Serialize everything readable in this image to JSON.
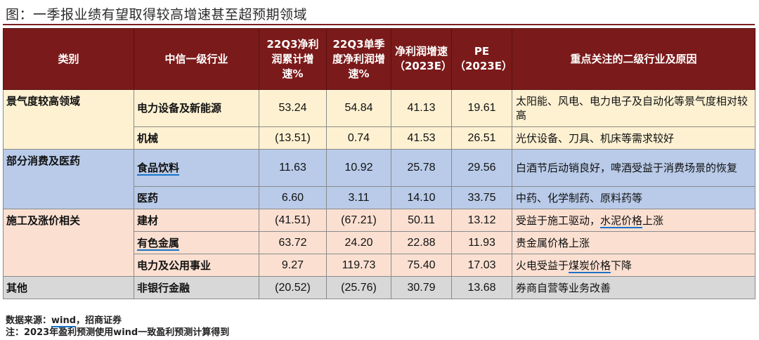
{
  "title": "图：一季报业绩有望取得较高增速甚至超预期领域",
  "table": {
    "headers": [
      "类别",
      "中信一级行业",
      "22Q3净利润累计增速%",
      "22Q3单季度净利润增速%",
      "净利润增速（2023E）",
      "PE（2023E）",
      "重点关注的二级行业及原因"
    ],
    "rows": [
      {
        "category": "景气度较高领域",
        "industry": "电力设备及新能源",
        "v1": "53.24",
        "v2": "54.84",
        "v3": "41.13",
        "pe": "19.61",
        "reason": "太阳能、风电、电力电子及自动化等景气度相对较高"
      },
      {
        "category": "",
        "industry": "机械",
        "v1": "(13.51)",
        "v2": "0.74",
        "v3": "41.53",
        "pe": "26.51",
        "reason": "光伏设备、刀具、机床等需求较好"
      },
      {
        "category": "部分消费及医药",
        "industry": "食品饮料",
        "v1": "11.63",
        "v2": "10.92",
        "v3": "25.78",
        "pe": "29.56",
        "reason": "白酒节后动销良好，啤酒受益于消费场景的恢复"
      },
      {
        "category": "",
        "industry": "医药",
        "v1": "6.60",
        "v2": "3.11",
        "v3": "14.10",
        "pe": "33.75",
        "reason": "中药、化学制药、原料药等"
      },
      {
        "category": "施工及涨价相关",
        "industry": "建材",
        "v1": "(41.51)",
        "v2": "(67.21)",
        "v3": "50.11",
        "pe": "13.12",
        "reason_pre": "受益于施工驱动，",
        "reason_ul": "水泥价格",
        "reason_post": "上涨"
      },
      {
        "category": "",
        "industry": "有色金属",
        "v1": "63.72",
        "v2": "24.20",
        "v3": "22.88",
        "pe": "11.93",
        "reason": "贵金属价格上涨"
      },
      {
        "category": "",
        "industry": "电力及公用事业",
        "v1": "9.27",
        "v2": "119.73",
        "v3": "75.40",
        "pe": "17.03",
        "reason_pre": "火电受益于",
        "reason_ul": "煤炭价格",
        "reason_post": "下降"
      },
      {
        "category": "其他",
        "industry": "非银行金融",
        "v1": "(20.52)",
        "v2": "(25.76)",
        "v3": "30.79",
        "pe": "13.68",
        "reason": "券商自营等业务改善"
      }
    ]
  },
  "notes": {
    "source_prefix": "数据来源：",
    "source_wind": "wind",
    "source_suffix": "，招商证券",
    "note": "注：2023年盈利预测使用wind一致盈利预测计算得到"
  }
}
